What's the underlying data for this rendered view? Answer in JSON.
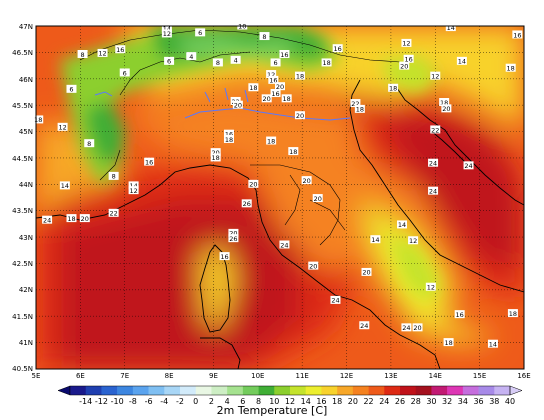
{
  "map": {
    "title": "2m Temperature [C]",
    "lat_labels": [
      "47N",
      "46.5N",
      "46N",
      "45.5N",
      "45N",
      "44.5N",
      "44N",
      "43.5N",
      "43N",
      "42.5N",
      "42N",
      "41.5N",
      "41N",
      "40.5N"
    ],
    "lon_labels": [
      "5E",
      "6E",
      "7E",
      "8E",
      "9E",
      "10E",
      "11E",
      "12E",
      "13E",
      "14E",
      "15E",
      "16E"
    ],
    "colorbar_labels": [
      "-14",
      "-12",
      "-10",
      "-8",
      "-6",
      "-4",
      "-2",
      "0",
      "2",
      "4",
      "6",
      "8",
      "10",
      "12",
      "14",
      "16",
      "18",
      "20",
      "22",
      "24",
      "26",
      "28",
      "30",
      "32",
      "34",
      "36",
      "38",
      "40"
    ],
    "colorbar_colors": [
      "#1a1a8c",
      "#1f3fb0",
      "#2a63d0",
      "#3c86e0",
      "#5aa3ee",
      "#7fbff2",
      "#a8d6f6",
      "#d2ebfa",
      "#e9f7e4",
      "#cdeec4",
      "#a5e28f",
      "#73cc5c",
      "#3fae35",
      "#8ccf2e",
      "#c4e32c",
      "#ecee2e",
      "#f8d22c",
      "#f7a728",
      "#f58220",
      "#ee5a1a",
      "#dd2a14",
      "#c0121a",
      "#a4101e",
      "#c21a73",
      "#dd36b4",
      "#c56edd",
      "#a78ae8",
      "#c6b3f2"
    ],
    "iso_labels": [
      {
        "t": "14",
        "lon": 7.95,
        "lat": 46.95
      },
      {
        "t": "12",
        "lon": 7.95,
        "lat": 46.85
      },
      {
        "t": "6",
        "lon": 8.7,
        "lat": 46.87
      },
      {
        "t": "10",
        "lon": 9.65,
        "lat": 47.0
      },
      {
        "t": "8",
        "lon": 10.15,
        "lat": 46.8
      },
      {
        "t": "14",
        "lon": 14.35,
        "lat": 46.97
      },
      {
        "t": "16",
        "lon": 15.85,
        "lat": 46.83
      },
      {
        "t": "8",
        "lon": 6.05,
        "lat": 46.46
      },
      {
        "t": "12",
        "lon": 6.5,
        "lat": 46.48
      },
      {
        "t": "16",
        "lon": 6.9,
        "lat": 46.55
      },
      {
        "t": "6",
        "lon": 8.0,
        "lat": 46.33
      },
      {
        "t": "4",
        "lon": 8.5,
        "lat": 46.42
      },
      {
        "t": "8",
        "lon": 9.1,
        "lat": 46.3
      },
      {
        "t": "4",
        "lon": 9.5,
        "lat": 46.35
      },
      {
        "t": "6",
        "lon": 10.4,
        "lat": 46.3
      },
      {
        "t": "16",
        "lon": 10.6,
        "lat": 46.46
      },
      {
        "t": "16",
        "lon": 11.8,
        "lat": 46.57
      },
      {
        "t": "18",
        "lon": 11.55,
        "lat": 46.3
      },
      {
        "t": "12",
        "lon": 13.35,
        "lat": 46.67
      },
      {
        "t": "16",
        "lon": 13.4,
        "lat": 46.37
      },
      {
        "t": "20",
        "lon": 13.3,
        "lat": 46.24
      },
      {
        "t": "12",
        "lon": 14.0,
        "lat": 46.05
      },
      {
        "t": "14",
        "lon": 14.6,
        "lat": 46.33
      },
      {
        "t": "18",
        "lon": 15.7,
        "lat": 46.2
      },
      {
        "t": "6",
        "lon": 7.0,
        "lat": 46.11
      },
      {
        "t": "12",
        "lon": 10.3,
        "lat": 46.08
      },
      {
        "t": "16",
        "lon": 10.35,
        "lat": 45.97
      },
      {
        "t": "18",
        "lon": 10.95,
        "lat": 46.05
      },
      {
        "t": "6",
        "lon": 5.8,
        "lat": 45.8
      },
      {
        "t": "18",
        "lon": 9.9,
        "lat": 45.83
      },
      {
        "t": "20",
        "lon": 10.5,
        "lat": 45.85
      },
      {
        "t": "16",
        "lon": 10.4,
        "lat": 45.72
      },
      {
        "t": "20",
        "lon": 10.2,
        "lat": 45.62
      },
      {
        "t": "18",
        "lon": 10.65,
        "lat": 45.62
      },
      {
        "t": "18",
        "lon": 13.05,
        "lat": 45.82
      },
      {
        "t": "22",
        "lon": 9.5,
        "lat": 45.57
      },
      {
        "t": "20",
        "lon": 9.55,
        "lat": 45.5
      },
      {
        "t": "20",
        "lon": 10.95,
        "lat": 45.3
      },
      {
        "t": "22",
        "lon": 12.2,
        "lat": 45.53
      },
      {
        "t": "18",
        "lon": 12.3,
        "lat": 45.42
      },
      {
        "t": "18",
        "lon": 14.2,
        "lat": 45.55
      },
      {
        "t": "20",
        "lon": 14.25,
        "lat": 45.43
      },
      {
        "t": "18",
        "lon": 5.05,
        "lat": 45.22
      },
      {
        "t": "12",
        "lon": 5.6,
        "lat": 45.08
      },
      {
        "t": "8",
        "lon": 6.2,
        "lat": 44.77
      },
      {
        "t": "22",
        "lon": 14.0,
        "lat": 45.03
      },
      {
        "t": "16",
        "lon": 9.35,
        "lat": 44.95
      },
      {
        "t": "18",
        "lon": 9.35,
        "lat": 44.85
      },
      {
        "t": "18",
        "lon": 10.3,
        "lat": 44.82
      },
      {
        "t": "18",
        "lon": 10.8,
        "lat": 44.62
      },
      {
        "t": "20",
        "lon": 9.05,
        "lat": 44.6
      },
      {
        "t": "18",
        "lon": 9.05,
        "lat": 44.5
      },
      {
        "t": "16",
        "lon": 7.55,
        "lat": 44.42
      },
      {
        "t": "24",
        "lon": 13.95,
        "lat": 44.4
      },
      {
        "t": "24",
        "lon": 14.75,
        "lat": 44.35
      },
      {
        "t": "8",
        "lon": 6.75,
        "lat": 44.15
      },
      {
        "t": "14",
        "lon": 5.65,
        "lat": 43.97
      },
      {
        "t": "20",
        "lon": 9.9,
        "lat": 44.0
      },
      {
        "t": "20",
        "lon": 11.1,
        "lat": 44.07
      },
      {
        "t": "20",
        "lon": 11.35,
        "lat": 43.73
      },
      {
        "t": "14",
        "lon": 7.2,
        "lat": 43.97
      },
      {
        "t": "12",
        "lon": 7.2,
        "lat": 43.88
      },
      {
        "t": "24",
        "lon": 13.95,
        "lat": 43.87
      },
      {
        "t": "26",
        "lon": 9.75,
        "lat": 43.63
      },
      {
        "t": "24",
        "lon": 5.25,
        "lat": 43.32
      },
      {
        "t": "18",
        "lon": 5.8,
        "lat": 43.35
      },
      {
        "t": "20",
        "lon": 6.1,
        "lat": 43.35
      },
      {
        "t": "22",
        "lon": 6.75,
        "lat": 43.45
      },
      {
        "t": "14",
        "lon": 13.25,
        "lat": 43.23
      },
      {
        "t": "20",
        "lon": 9.45,
        "lat": 43.07
      },
      {
        "t": "26",
        "lon": 9.45,
        "lat": 42.97
      },
      {
        "t": "12",
        "lon": 13.5,
        "lat": 42.93
      },
      {
        "t": "24",
        "lon": 10.6,
        "lat": 42.85
      },
      {
        "t": "14",
        "lon": 12.65,
        "lat": 42.95
      },
      {
        "t": "16",
        "lon": 9.25,
        "lat": 42.63
      },
      {
        "t": "20",
        "lon": 11.25,
        "lat": 42.45
      },
      {
        "t": "20",
        "lon": 12.45,
        "lat": 42.33
      },
      {
        "t": "12",
        "lon": 13.9,
        "lat": 42.05
      },
      {
        "t": "24",
        "lon": 11.75,
        "lat": 41.8
      },
      {
        "t": "16",
        "lon": 14.55,
        "lat": 41.53
      },
      {
        "t": "18",
        "lon": 15.75,
        "lat": 41.55
      },
      {
        "t": "24",
        "lon": 12.4,
        "lat": 41.32
      },
      {
        "t": "24",
        "lon": 13.35,
        "lat": 41.28
      },
      {
        "t": "20",
        "lon": 13.6,
        "lat": 41.28
      },
      {
        "t": "18",
        "lon": 14.3,
        "lat": 41.0
      },
      {
        "t": "14",
        "lon": 15.3,
        "lat": 40.97
      }
    ]
  }
}
